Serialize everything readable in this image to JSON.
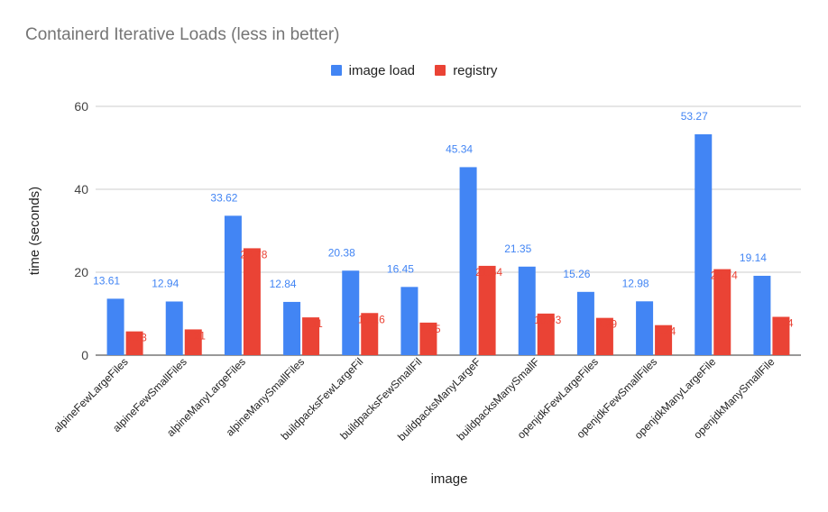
{
  "chart_data": {
    "type": "bar",
    "title": "Containerd Iterative Loads (less in better)",
    "xlabel": "image",
    "ylabel": "time (seconds)",
    "ylim": [
      0,
      60
    ],
    "yticks": [
      0,
      20,
      40,
      60
    ],
    "grid": true,
    "legend_position": "top",
    "categories": [
      "alpineFewLargeFiles",
      "alpineFewSmallFiles",
      "alpineManyLargeFiles",
      "alpineManySmallFiles",
      "buildpacksFewLargeFil",
      "buildpacksFewSmallFil",
      "buildpacksManyLargeF",
      "buildpacksManySmallF",
      "openjdkFewLargeFiles",
      "openjdkFewSmallFiles",
      "openjdkManyLargeFile",
      "openjdkManySmallFile"
    ],
    "series": [
      {
        "name": "image load",
        "color": "#4285f4",
        "values": [
          13.61,
          12.94,
          33.62,
          12.84,
          20.38,
          16.45,
          45.34,
          21.35,
          15.26,
          12.98,
          53.27,
          19.14
        ]
      },
      {
        "name": "registry",
        "color": "#ea4335",
        "values": [
          5.73,
          6.21,
          25.78,
          9.11,
          10.16,
          7.85,
          21.54,
          10.03,
          8.99,
          7.24,
          20.74,
          9.24
        ]
      }
    ]
  }
}
